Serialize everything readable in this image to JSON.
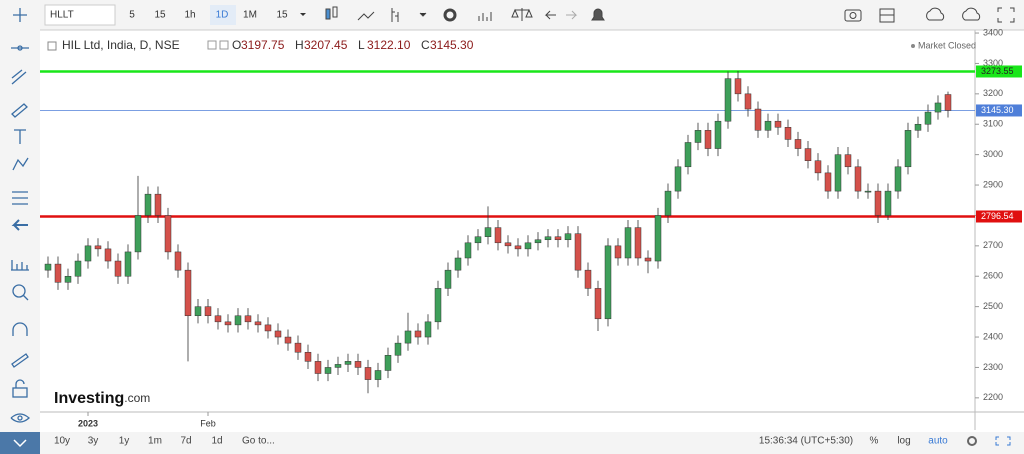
{
  "toolbar": {
    "symbol": "HLLT",
    "intervals": [
      "5",
      "15",
      "1h",
      "1D",
      "1M",
      "15"
    ]
  },
  "header": {
    "title": "HIL Ltd, India, D, NSE",
    "status": "Market Closed"
  },
  "logo": {
    "name": "Investing",
    "suffix": ".com"
  },
  "bottom_bar": {
    "ranges": [
      "10y",
      "3y",
      "1y",
      "1m",
      "7d",
      "1d"
    ],
    "goto": "Go to...",
    "time": "15:36:34 (UTC+5:30)",
    "options": [
      "%",
      "log",
      "auto"
    ]
  },
  "chart_data": {
    "type": "candlestick",
    "ohlc_keys": [
      "O",
      "H",
      "L",
      "C"
    ],
    "last_labels": [
      "3197.75",
      "3207.45",
      "3122.10",
      "3145.30"
    ],
    "up_color": "#3e9f5a",
    "down_color": "#d4514b",
    "categories": [
      null,
      null,
      null,
      null,
      "2023",
      null,
      null,
      null,
      null,
      null,
      null,
      null,
      null,
      null,
      null,
      null,
      "Feb",
      null,
      null,
      null,
      null,
      null,
      null,
      null,
      null,
      null,
      null,
      null,
      null,
      null,
      null,
      null,
      null,
      null,
      null,
      null,
      null,
      null,
      null,
      null,
      null,
      null,
      null,
      null,
      null,
      null,
      null,
      null,
      null,
      null,
      null,
      null,
      null,
      null,
      null,
      null,
      null,
      null,
      null,
      null,
      null,
      null,
      null,
      null,
      null,
      null,
      null,
      null,
      null,
      null,
      null,
      null,
      null,
      null,
      null,
      null,
      null,
      null,
      null,
      null,
      null,
      null,
      null,
      null,
      null,
      null,
      null,
      null,
      null,
      null,
      null
    ],
    "open": [
      2620,
      2640,
      2580,
      2600,
      2650,
      2700,
      2690,
      2650,
      2600,
      2680,
      2800,
      2870,
      2800,
      2680,
      2620,
      2470,
      2500,
      2470,
      2450,
      2440,
      2470,
      2450,
      2440,
      2420,
      2400,
      2380,
      2350,
      2320,
      2280,
      2300,
      2310,
      2320,
      2300,
      2260,
      2290,
      2340,
      2380,
      2420,
      2400,
      2450,
      2560,
      2620,
      2660,
      2710,
      2730,
      2760,
      2710,
      2700,
      2690,
      2710,
      2720,
      2730,
      2720,
      2740,
      2620,
      2560,
      2460,
      2700,
      2660,
      2760,
      2660,
      2650,
      2800,
      2880,
      2960,
      3040,
      3080,
      3020,
      3110,
      3250,
      3200,
      3150,
      3080,
      3110,
      3090,
      3050,
      3020,
      2980,
      2940,
      2880,
      3000,
      2960,
      2880,
      2880,
      2800,
      2880,
      2960,
      3080,
      3100,
      3140,
      3197.75
    ],
    "high": [
      2665,
      2665,
      2625,
      2675,
      2725,
      2725,
      2715,
      2675,
      2705,
      2930,
      2895,
      2895,
      2825,
      2705,
      2645,
      2525,
      2525,
      2495,
      2475,
      2495,
      2495,
      2475,
      2465,
      2445,
      2425,
      2405,
      2375,
      2345,
      2325,
      2335,
      2345,
      2345,
      2325,
      2315,
      2365,
      2405,
      2480,
      2445,
      2475,
      2585,
      2645,
      2685,
      2735,
      2755,
      2830,
      2785,
      2735,
      2725,
      2735,
      2745,
      2755,
      2755,
      2765,
      2765,
      2645,
      2585,
      2725,
      2725,
      2785,
      2785,
      2685,
      2825,
      2905,
      2985,
      3065,
      3105,
      3105,
      3135,
      3273.55,
      3275,
      3225,
      3175,
      3135,
      3135,
      3115,
      3075,
      3045,
      3005,
      2965,
      3025,
      3025,
      2985,
      2905,
      2905,
      2905,
      2985,
      3105,
      3125,
      3165,
      3195,
      3207.45
    ],
    "low": [
      2595,
      2555,
      2555,
      2575,
      2625,
      2665,
      2625,
      2575,
      2575,
      2655,
      2775,
      2775,
      2655,
      2595,
      2320,
      2445,
      2445,
      2425,
      2415,
      2415,
      2425,
      2415,
      2395,
      2375,
      2355,
      2325,
      2295,
      2255,
      2255,
      2275,
      2285,
      2275,
      2215,
      2235,
      2265,
      2315,
      2355,
      2375,
      2375,
      2425,
      2535,
      2595,
      2635,
      2685,
      2705,
      2685,
      2675,
      2665,
      2665,
      2685,
      2695,
      2695,
      2695,
      2595,
      2535,
      2420,
      2435,
      2635,
      2635,
      2635,
      2610,
      2625,
      2775,
      2855,
      2935,
      3015,
      2995,
      2995,
      3085,
      3175,
      3125,
      3055,
      3055,
      3065,
      3025,
      2995,
      2955,
      2915,
      2855,
      2855,
      2935,
      2855,
      2855,
      2775,
      2785,
      2855,
      2935,
      3055,
      3075,
      3115,
      3122.1
    ],
    "close": [
      2640,
      2580,
      2600,
      2650,
      2700,
      2690,
      2650,
      2600,
      2680,
      2800,
      2870,
      2800,
      2680,
      2620,
      2470,
      2500,
      2470,
      2450,
      2440,
      2470,
      2450,
      2440,
      2420,
      2400,
      2380,
      2350,
      2320,
      2280,
      2300,
      2310,
      2320,
      2300,
      2260,
      2290,
      2340,
      2380,
      2420,
      2400,
      2450,
      2560,
      2620,
      2660,
      2710,
      2730,
      2760,
      2710,
      2700,
      2690,
      2710,
      2720,
      2730,
      2720,
      2740,
      2620,
      2560,
      2460,
      2700,
      2660,
      2760,
      2660,
      2650,
      2800,
      2880,
      2960,
      3040,
      3080,
      3020,
      3110,
      3250,
      3200,
      3150,
      3080,
      3110,
      3090,
      3050,
      3020,
      2980,
      2940,
      2880,
      3000,
      2960,
      2880,
      2880,
      2800,
      2880,
      2960,
      3080,
      3100,
      3140,
      3170,
      3145.3
    ],
    "hlines": [
      {
        "value": 3273.55,
        "color": "#19e619"
      },
      {
        "value": 2796.54,
        "color": "#e01010"
      },
      {
        "value": 3145.3,
        "label": "3145.30",
        "color": "#4f7fd9"
      }
    ],
    "ylim": [
      2160,
      3410
    ],
    "yticks": [
      2200,
      2300,
      2400,
      2500,
      2600,
      2700,
      2800,
      2900,
      3000,
      3100,
      3200,
      3300,
      3400
    ],
    "grid": false
  }
}
